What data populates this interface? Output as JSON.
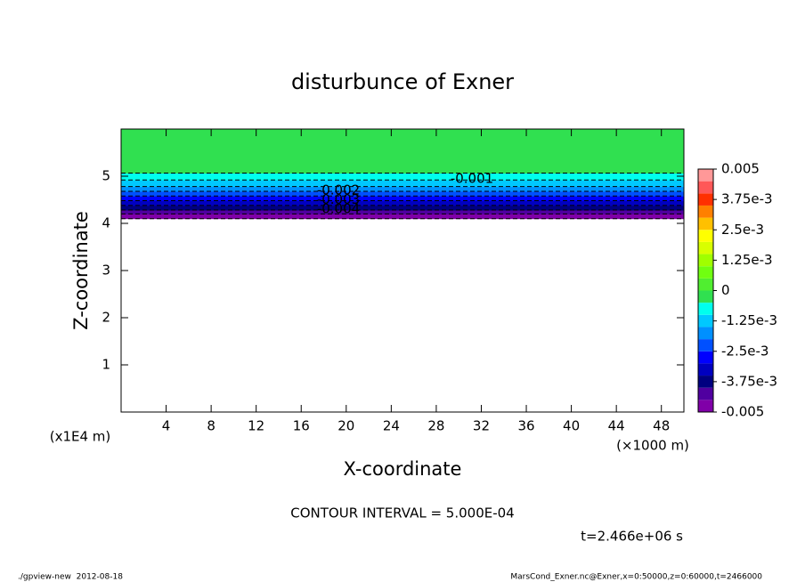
{
  "chart_data": {
    "type": "contour",
    "title": "disturbunce of Exner",
    "x_label": "X-coordinate",
    "y_label": "Z-coordinate",
    "x_unit": "(×1000 m)",
    "y_unit": "(x1E4 m)",
    "xlim": [
      0,
      50
    ],
    "xticks": [
      4,
      8,
      12,
      16,
      20,
      24,
      28,
      32,
      36,
      40,
      44,
      48
    ],
    "ylim": [
      0,
      6
    ],
    "yticks": [
      1,
      2,
      3,
      4,
      5
    ],
    "z": [
      4.1,
      4.2,
      4.3,
      4.4,
      4.5,
      4.6,
      4.7,
      4.8,
      4.9,
      5.0,
      5.2,
      5.5,
      6.0
    ],
    "values": [
      -0.005,
      -0.0045,
      -0.0039,
      -0.0034,
      -0.0029,
      -0.0024,
      -0.0019,
      -0.0014,
      -0.0011,
      -0.0006,
      -0.0003,
      -0.0002,
      -0.0001
    ],
    "levels": [
      -0.005,
      -0.0045,
      -0.004,
      -0.0035,
      -0.003,
      -0.0025,
      -0.002,
      -0.0015,
      -0.001,
      -0.0005,
      0,
      0.0005,
      0.001,
      0.0015,
      0.002,
      0.0025,
      0.003,
      0.0035,
      0.004,
      0.0045,
      0.005
    ],
    "colors": [
      "#8000a8",
      "#5000a0",
      "#000080",
      "#0000c0",
      "#0000ff",
      "#0050ff",
      "#0090ff",
      "#00c8ff",
      "#00ffee",
      "#30e050",
      "#50ee30",
      "#70ff10",
      "#a0ff00",
      "#d8ff00",
      "#ffff00",
      "#ffc000",
      "#ff8000",
      "#ff3000",
      "#ff5858",
      "#ff9898"
    ],
    "colorbar_ticks": [
      -0.005,
      {
        "value": -0.00375,
        "label": "-3.75e-3"
      },
      {
        "value": -0.0025,
        "label": "-2.5e-3"
      },
      {
        "value": -0.00125,
        "label": "-1.25e-3"
      },
      0,
      {
        "value": 0.00125,
        "label": "1.25e-3"
      },
      {
        "value": 0.0025,
        "label": "2.5e-3"
      },
      {
        "value": 0.00375,
        "label": "3.75e-3"
      },
      0.005
    ],
    "contour_labels": [
      -0.001,
      -0.002,
      -0.003,
      -0.004
    ],
    "contour_interval": "CONTOUR INTERVAL = 5.000E-04",
    "time": "t=2.466e+06 s",
    "footer_left": "./gpview-new  2012-08-18",
    "footer_right": "MarsCond_Exner.nc@Exner,x=0:50000,z=0:60000,t=2466000"
  }
}
